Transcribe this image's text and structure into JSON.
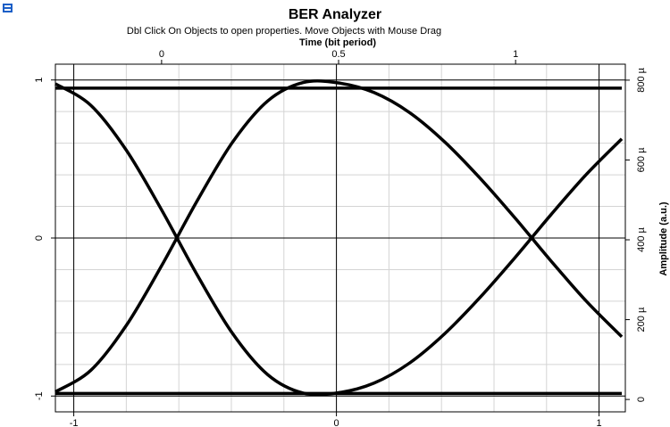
{
  "chart_data": {
    "type": "line",
    "title": "BER Analyzer",
    "subtitle": "Dbl Click On Objects to open properties.  Move Objects with Mouse Drag",
    "x2label": "Time (bit period)",
    "y2label": "Amplitude (a.u.)",
    "xlim": [
      -1.07,
      1.1
    ],
    "xticks": [
      -1,
      0,
      1
    ],
    "xminorticks": [
      -1,
      -0.8,
      -0.6,
      -0.4,
      -0.2,
      0,
      0.2,
      0.4,
      0.6,
      0.8,
      1
    ],
    "x2lim": [
      -0.3,
      1.31
    ],
    "x2ticks": [
      0,
      0.5,
      1
    ],
    "ylim": [
      -1.1,
      1.1
    ],
    "yticks": [
      -1,
      0,
      1
    ],
    "yminorticks": [
      -1,
      -0.8,
      -0.6,
      -0.4,
      -0.2,
      0,
      0.2,
      0.4,
      0.6,
      0.8,
      1
    ],
    "y2lim": [
      -3.1e-05,
      0.00084
    ],
    "y2ticks": [
      0,
      {
        "value": 0.0002,
        "label": "200 µ"
      },
      {
        "value": 0.0004,
        "label": "400 µ"
      },
      {
        "value": 0.0006,
        "label": "600 µ"
      },
      {
        "value": 0.0008,
        "label": "800 µ"
      }
    ],
    "grid": true,
    "color": "#000000",
    "x": [
      -0.3,
      -0.2,
      -0.1,
      0,
      0.1,
      0.2,
      0.3,
      0.4,
      0.5,
      0.6,
      0.7,
      0.8,
      0.9,
      1,
      1.1,
      1.2,
      1.3
    ],
    "series": [
      {
        "axis": "y2",
        "color": "#000000",
        "values": [
          1.9e-05,
          7.3e-05,
          0.000185,
          0.000335,
          0.000497,
          0.000644,
          0.000748,
          0.000794,
          0.000793,
          0.000769,
          0.000719,
          0.000645,
          0.000554,
          0.000453,
          0.000347,
          0.000246,
          0.000157
        ]
      },
      {
        "axis": "y2",
        "color": "#000000",
        "values": [
          0.000791,
          0.000737,
          0.000625,
          0.000475,
          0.000313,
          0.000166,
          6.2e-05,
          1.6e-05,
          1.7e-05,
          4.1e-05,
          9.1e-05,
          0.000165,
          0.000256,
          0.000357,
          0.000463,
          0.000564,
          0.000653
        ]
      },
      {
        "axis": "y2",
        "color": "#000000",
        "values": [
          0.00078,
          0.00078,
          0.00078,
          0.00078,
          0.00078,
          0.00078,
          0.00078,
          0.00078,
          0.00078,
          0.00078,
          0.00078,
          0.00078,
          0.00078,
          0.00078,
          0.00078,
          0.00078,
          0.00078
        ]
      },
      {
        "axis": "y2",
        "color": "#000000",
        "values": [
          1.5e-05,
          1.5e-05,
          1.5e-05,
          1.5e-05,
          1.5e-05,
          1.5e-05,
          1.5e-05,
          1.5e-05,
          1.5e-05,
          1.5e-05,
          1.5e-05,
          1.5e-05,
          1.5e-05,
          1.5e-05,
          1.5e-05,
          1.5e-05,
          1.5e-05
        ]
      }
    ]
  }
}
